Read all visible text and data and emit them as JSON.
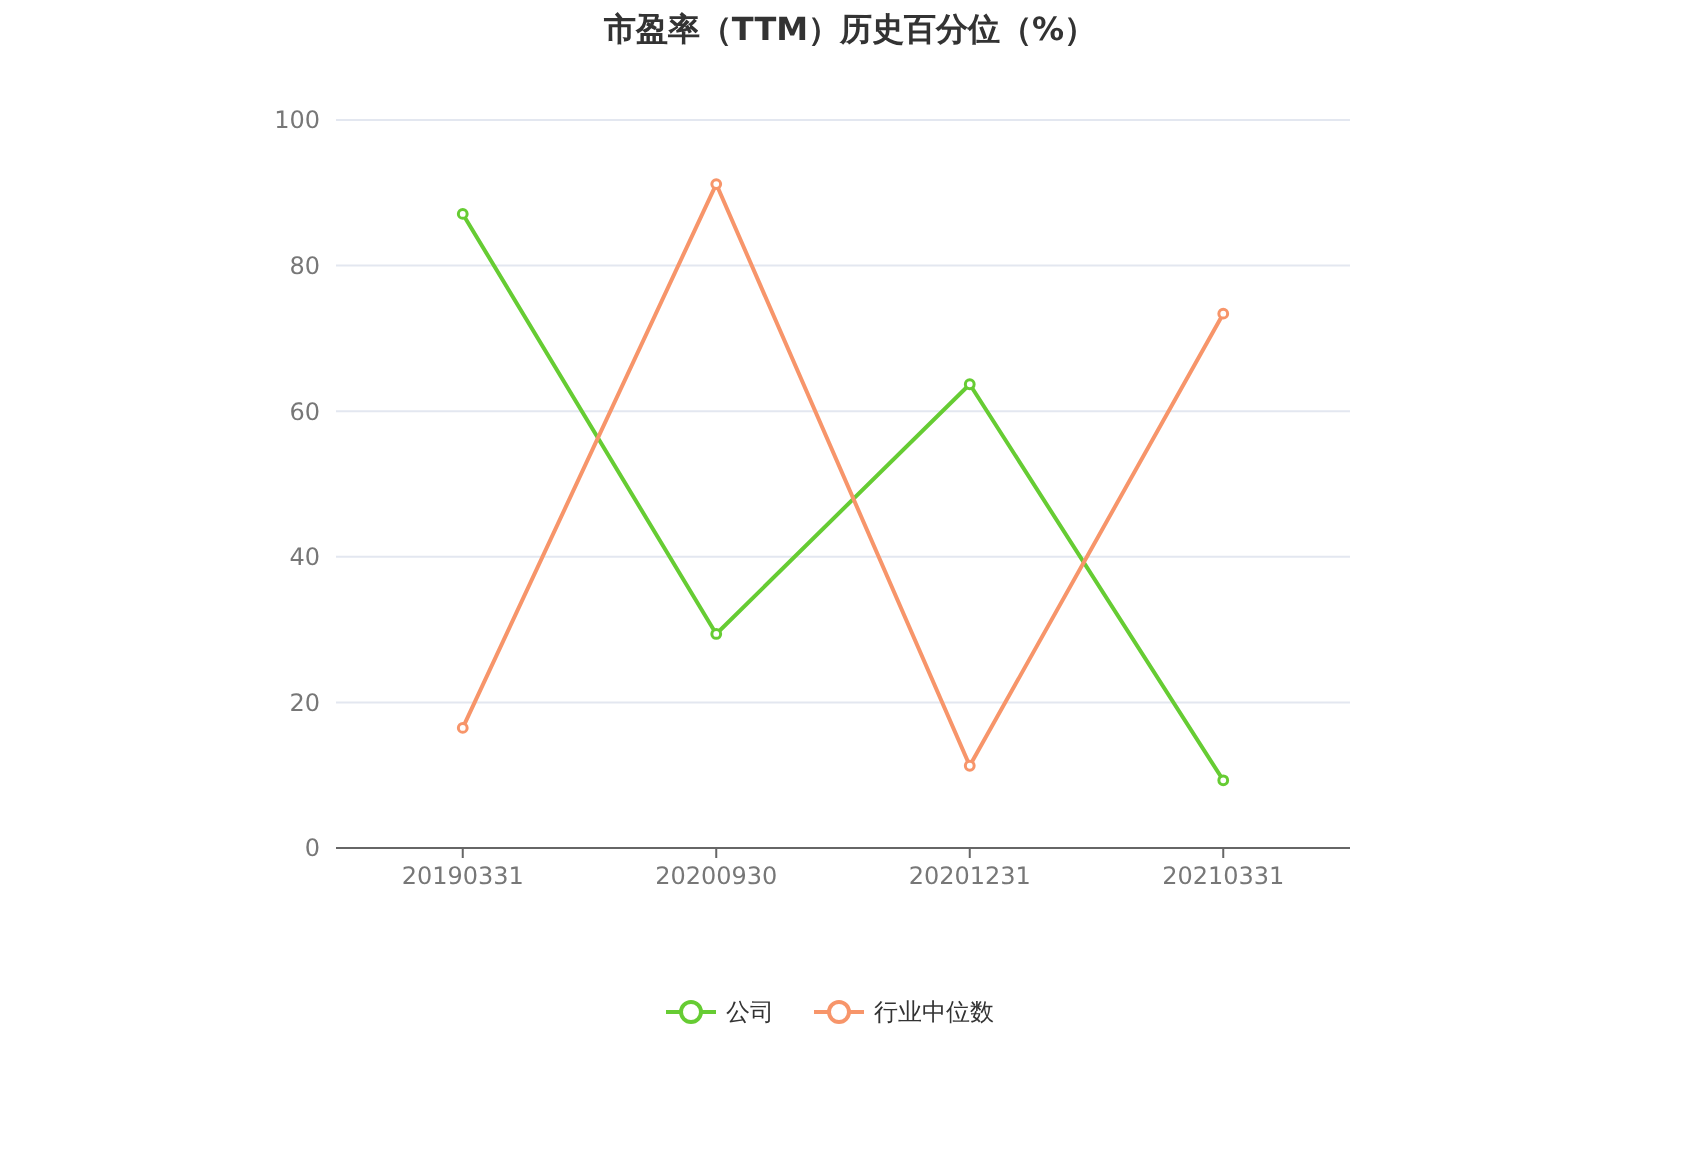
{
  "chart_data": {
    "type": "line",
    "title": "市盈率（TTM）历史百分位（%）",
    "categories": [
      "20190331",
      "20200930",
      "20201231",
      "20210331"
    ],
    "series": [
      {
        "name": "公司",
        "color": "#66cc33",
        "values": [
          87.1,
          29.4,
          63.7,
          9.3
        ]
      },
      {
        "name": "行业中位数",
        "color": "#f7956a",
        "values": [
          16.5,
          91.2,
          11.3,
          73.4
        ]
      }
    ],
    "ylim": [
      0,
      100
    ],
    "yticks": [
      0,
      20,
      40,
      60,
      80,
      100
    ],
    "grid": "y",
    "legend": "bottom",
    "marker": "circle",
    "line_style": "solid"
  }
}
